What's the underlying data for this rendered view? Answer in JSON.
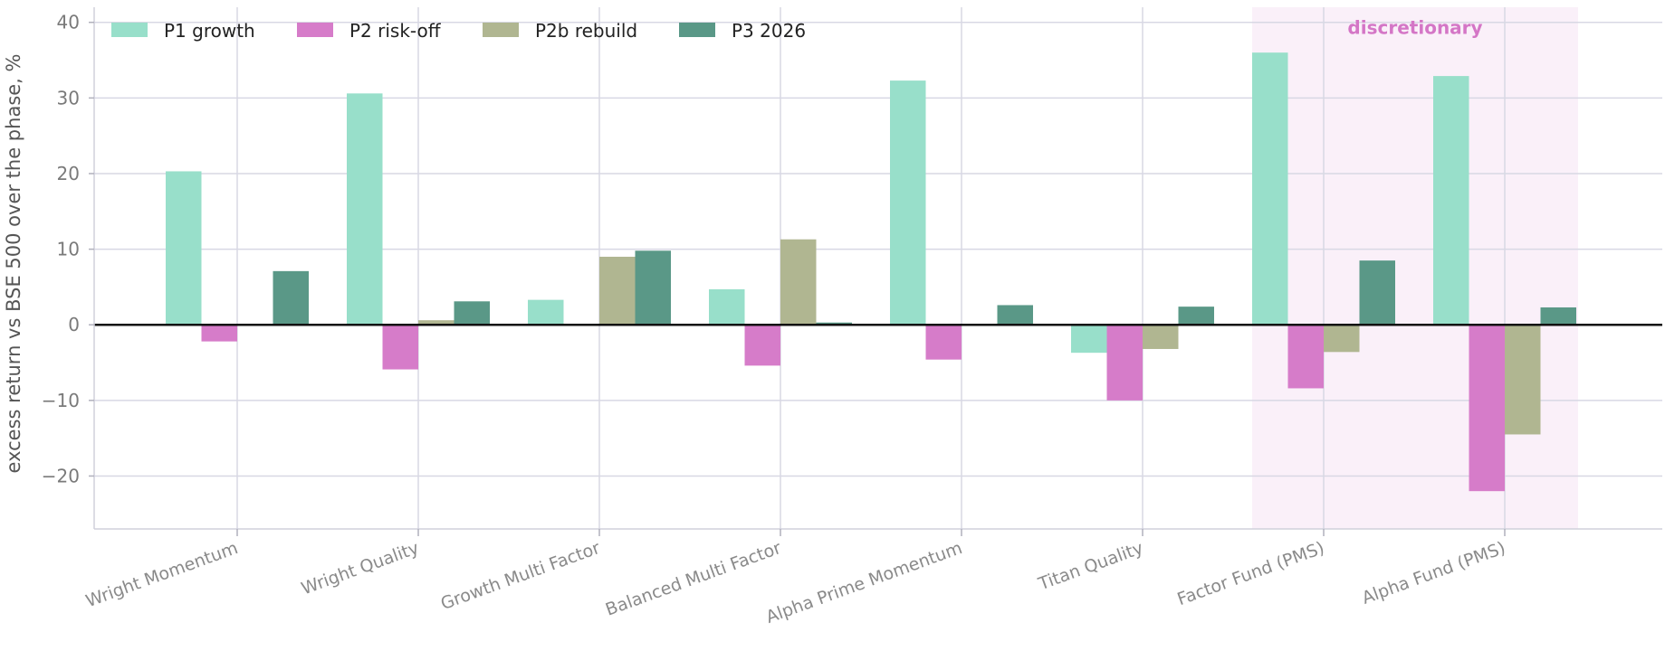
{
  "chart_data": {
    "type": "bar",
    "title": "",
    "xlabel": "",
    "ylabel": "excess return vs BSE 500 over the phase, %",
    "ylim": [
      -27,
      42
    ],
    "yticks": [
      -20,
      -10,
      0,
      10,
      20,
      30,
      40
    ],
    "ytick_labels": [
      "−20",
      "−10",
      "0",
      "10",
      "20",
      "30",
      "40"
    ],
    "grid": true,
    "legend_position": "top-left",
    "categories": [
      "Wright Momentum",
      "Wright Quality",
      "Growth Multi Factor",
      "Balanced Multi Factor",
      "Alpha Prime Momentum",
      "Titan Quality",
      "Factor Fund (PMS)",
      "Alpha Fund (PMS)"
    ],
    "series": [
      {
        "name": "P1 growth",
        "color": "#98dfca",
        "values": [
          20.3,
          30.6,
          3.3,
          4.7,
          32.3,
          -3.7,
          36.0,
          32.9
        ]
      },
      {
        "name": "P2 risk-off",
        "color": "#d67cc9",
        "values": [
          -2.2,
          -5.9,
          0.0,
          -5.4,
          -4.6,
          -10.0,
          -8.4,
          -22.0
        ]
      },
      {
        "name": "P2b rebuild",
        "color": "#b0b691",
        "values": [
          0.0,
          0.6,
          9.0,
          11.3,
          0.0,
          -3.2,
          -3.6,
          -14.5
        ]
      },
      {
        "name": "P3 2026",
        "color": "#5a9887",
        "values": [
          7.1,
          3.1,
          9.8,
          0.3,
          2.6,
          2.4,
          8.5,
          2.3
        ]
      }
    ],
    "highlight": {
      "label": "discretionary",
      "label_color": "#d476c6",
      "fill": "#faf0f9",
      "categories": [
        "Factor Fund (PMS)",
        "Alpha Fund (PMS)"
      ]
    },
    "zero_line": true
  }
}
